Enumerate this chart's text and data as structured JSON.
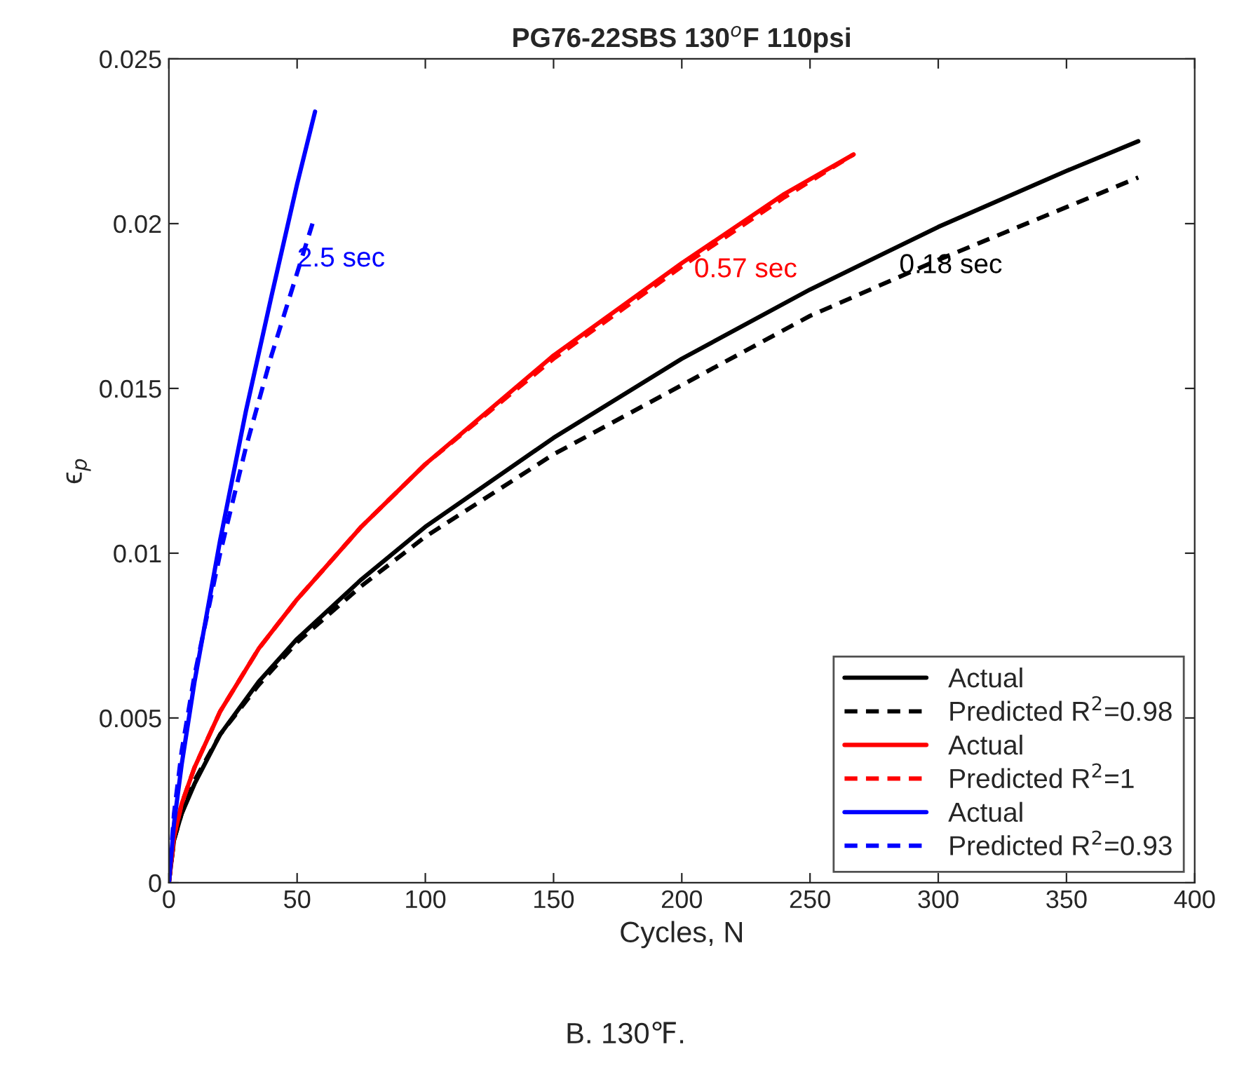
{
  "chart_data": {
    "type": "line",
    "title": "PG76-22SBS 130$^{o}$F 110psi",
    "xlabel": "Cycles, N",
    "ylabel": "ϵ$_{p}$",
    "xlim": [
      0,
      400
    ],
    "xticks": [
      0,
      50,
      100,
      150,
      200,
      250,
      300,
      350,
      400
    ],
    "ylim": [
      0,
      0.025
    ],
    "yticks": [
      0,
      0.005,
      0.01,
      0.015,
      0.02,
      0.025
    ],
    "grid": false,
    "legend": "bottom right",
    "marker": "none",
    "series": [
      {
        "name": "Actual",
        "color": "#000000",
        "line_style": "solid",
        "x": [
          0,
          2,
          5,
          10,
          20,
          35,
          50,
          75,
          100,
          150,
          200,
          250,
          300,
          350,
          378
        ],
        "values": [
          0,
          0.0013,
          0.0021,
          0.003,
          0.0045,
          0.0061,
          0.0074,
          0.0092,
          0.0108,
          0.0135,
          0.0159,
          0.018,
          0.0199,
          0.0216,
          0.0225
        ]
      },
      {
        "name": "Predicted R$^{2}$=0.98",
        "color": "#000000",
        "line_style": "dashed",
        "x": [
          0,
          2,
          5,
          10,
          20,
          35,
          50,
          75,
          100,
          150,
          200,
          250,
          300,
          350,
          378
        ],
        "values": [
          0,
          0.0013,
          0.0021,
          0.0031,
          0.0045,
          0.006,
          0.0073,
          0.009,
          0.0105,
          0.013,
          0.0151,
          0.0172,
          0.0189,
          0.0205,
          0.0214
        ]
      },
      {
        "name": "Actual",
        "color": "#ff0000",
        "line_style": "solid",
        "x": [
          0,
          2,
          5,
          10,
          20,
          35,
          50,
          75,
          100,
          150,
          200,
          240,
          267
        ],
        "values": [
          0,
          0.0014,
          0.0024,
          0.0035,
          0.0052,
          0.0071,
          0.0086,
          0.0108,
          0.0127,
          0.016,
          0.0188,
          0.0209,
          0.0221
        ]
      },
      {
        "name": "Predicted R$^{2}$=1",
        "color": "#ff0000",
        "line_style": "dashed",
        "x": [
          0,
          2,
          5,
          10,
          20,
          35,
          50,
          75,
          100,
          150,
          200,
          240,
          267
        ],
        "values": [
          0,
          0.0014,
          0.0024,
          0.0035,
          0.0052,
          0.0071,
          0.0086,
          0.0108,
          0.0127,
          0.0159,
          0.0187,
          0.0208,
          0.0221
        ]
      },
      {
        "name": "Actual",
        "color": "#0000ff",
        "line_style": "solid",
        "x": [
          0,
          2,
          5,
          10,
          20,
          30,
          40,
          50,
          57
        ],
        "values": [
          0,
          0.0018,
          0.0036,
          0.0061,
          0.0104,
          0.0143,
          0.0178,
          0.0212,
          0.0234
        ]
      },
      {
        "name": "Predicted R$^{2}$=0.93",
        "color": "#0000ff",
        "line_style": "dashed",
        "x": [
          0,
          2,
          5,
          10,
          20,
          30,
          40,
          50,
          56
        ],
        "values": [
          0,
          0.0021,
          0.004,
          0.0063,
          0.01,
          0.0132,
          0.016,
          0.0185,
          0.02
        ]
      }
    ],
    "annotations": [
      {
        "text": "2.5 sec",
        "x": 50,
        "y": 0.0187
      },
      "0.57 sec",
      "0.18 sec",
      "B. 130℉."
    ]
  }
}
